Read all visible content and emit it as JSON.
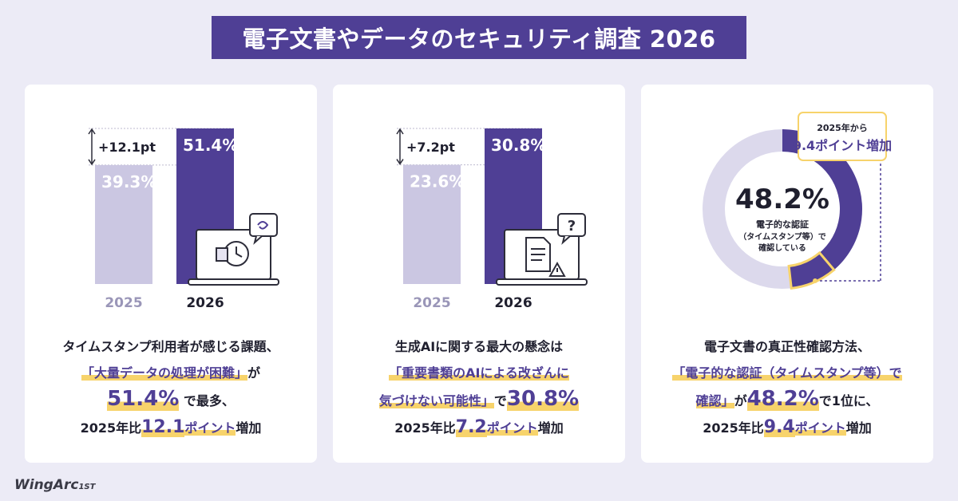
{
  "title": "電子文書やデータのセキュリティ調査 2026",
  "logo": "WingArc",
  "logo_suffix": "1ST",
  "colors": {
    "accent": "#4f3f95",
    "light_bar": "#cbc7e2",
    "highlight": "#f7d36b",
    "ring_bg": "#dcd9ec"
  },
  "cards": [
    {
      "diff_label": "+12.1pt",
      "desc": {
        "line1": "タイムスタンプ利用者が感じる課題、",
        "quote": "「大量データの処理が困難」",
        "quote_after": "が",
        "big": "51.4%",
        "big_after": "で最多、",
        "pre": "2025年比",
        "num": "12.1",
        "pt": "ポイント",
        "post": "増加"
      }
    },
    {
      "diff_label": "+7.2pt",
      "desc": {
        "quote1": "生成AIに関する最大の懸念は",
        "quote2": "「重要書類のAIによる改ざんに",
        "quote3": "気づけない可能性」",
        "mid_pre": "で",
        "big": "30.8%",
        "pre": "2025年比",
        "num": "7.2",
        "pt": "ポイント",
        "post": "増加"
      }
    },
    {
      "callout_top": "2025年から",
      "callout_main": "9.4ポイント増加",
      "center_value": "48.2%",
      "center_label1": "電子的な認証",
      "center_label2": "（タイムスタンプ等）で",
      "center_label3": "確認している",
      "desc": {
        "line1": "電子文書の真正性確認方法、",
        "quote1": "「電子的な認証（タイムスタンプ等）で",
        "quote2": "確認」",
        "mid_pre": "が",
        "big": "48.2%",
        "big_after": "で1位に、",
        "pre": "2025年比",
        "num": "9.4",
        "pt": "ポイント",
        "post": "増加"
      }
    }
  ],
  "chart_data": [
    {
      "type": "bar",
      "categories": [
        "2025",
        "2026"
      ],
      "values": [
        39.3,
        51.4
      ],
      "value_labels": [
        "39.3%",
        "51.4%"
      ],
      "ylim": [
        0,
        60
      ]
    },
    {
      "type": "bar",
      "categories": [
        "2025",
        "2026"
      ],
      "values": [
        23.6,
        30.8
      ],
      "value_labels": [
        "23.6%",
        "30.8%"
      ],
      "ylim": [
        0,
        36
      ]
    },
    {
      "type": "pie",
      "values": [
        48.2
      ],
      "value_labels": [
        "48.2%"
      ],
      "increase_from_2025": 9.4
    }
  ]
}
